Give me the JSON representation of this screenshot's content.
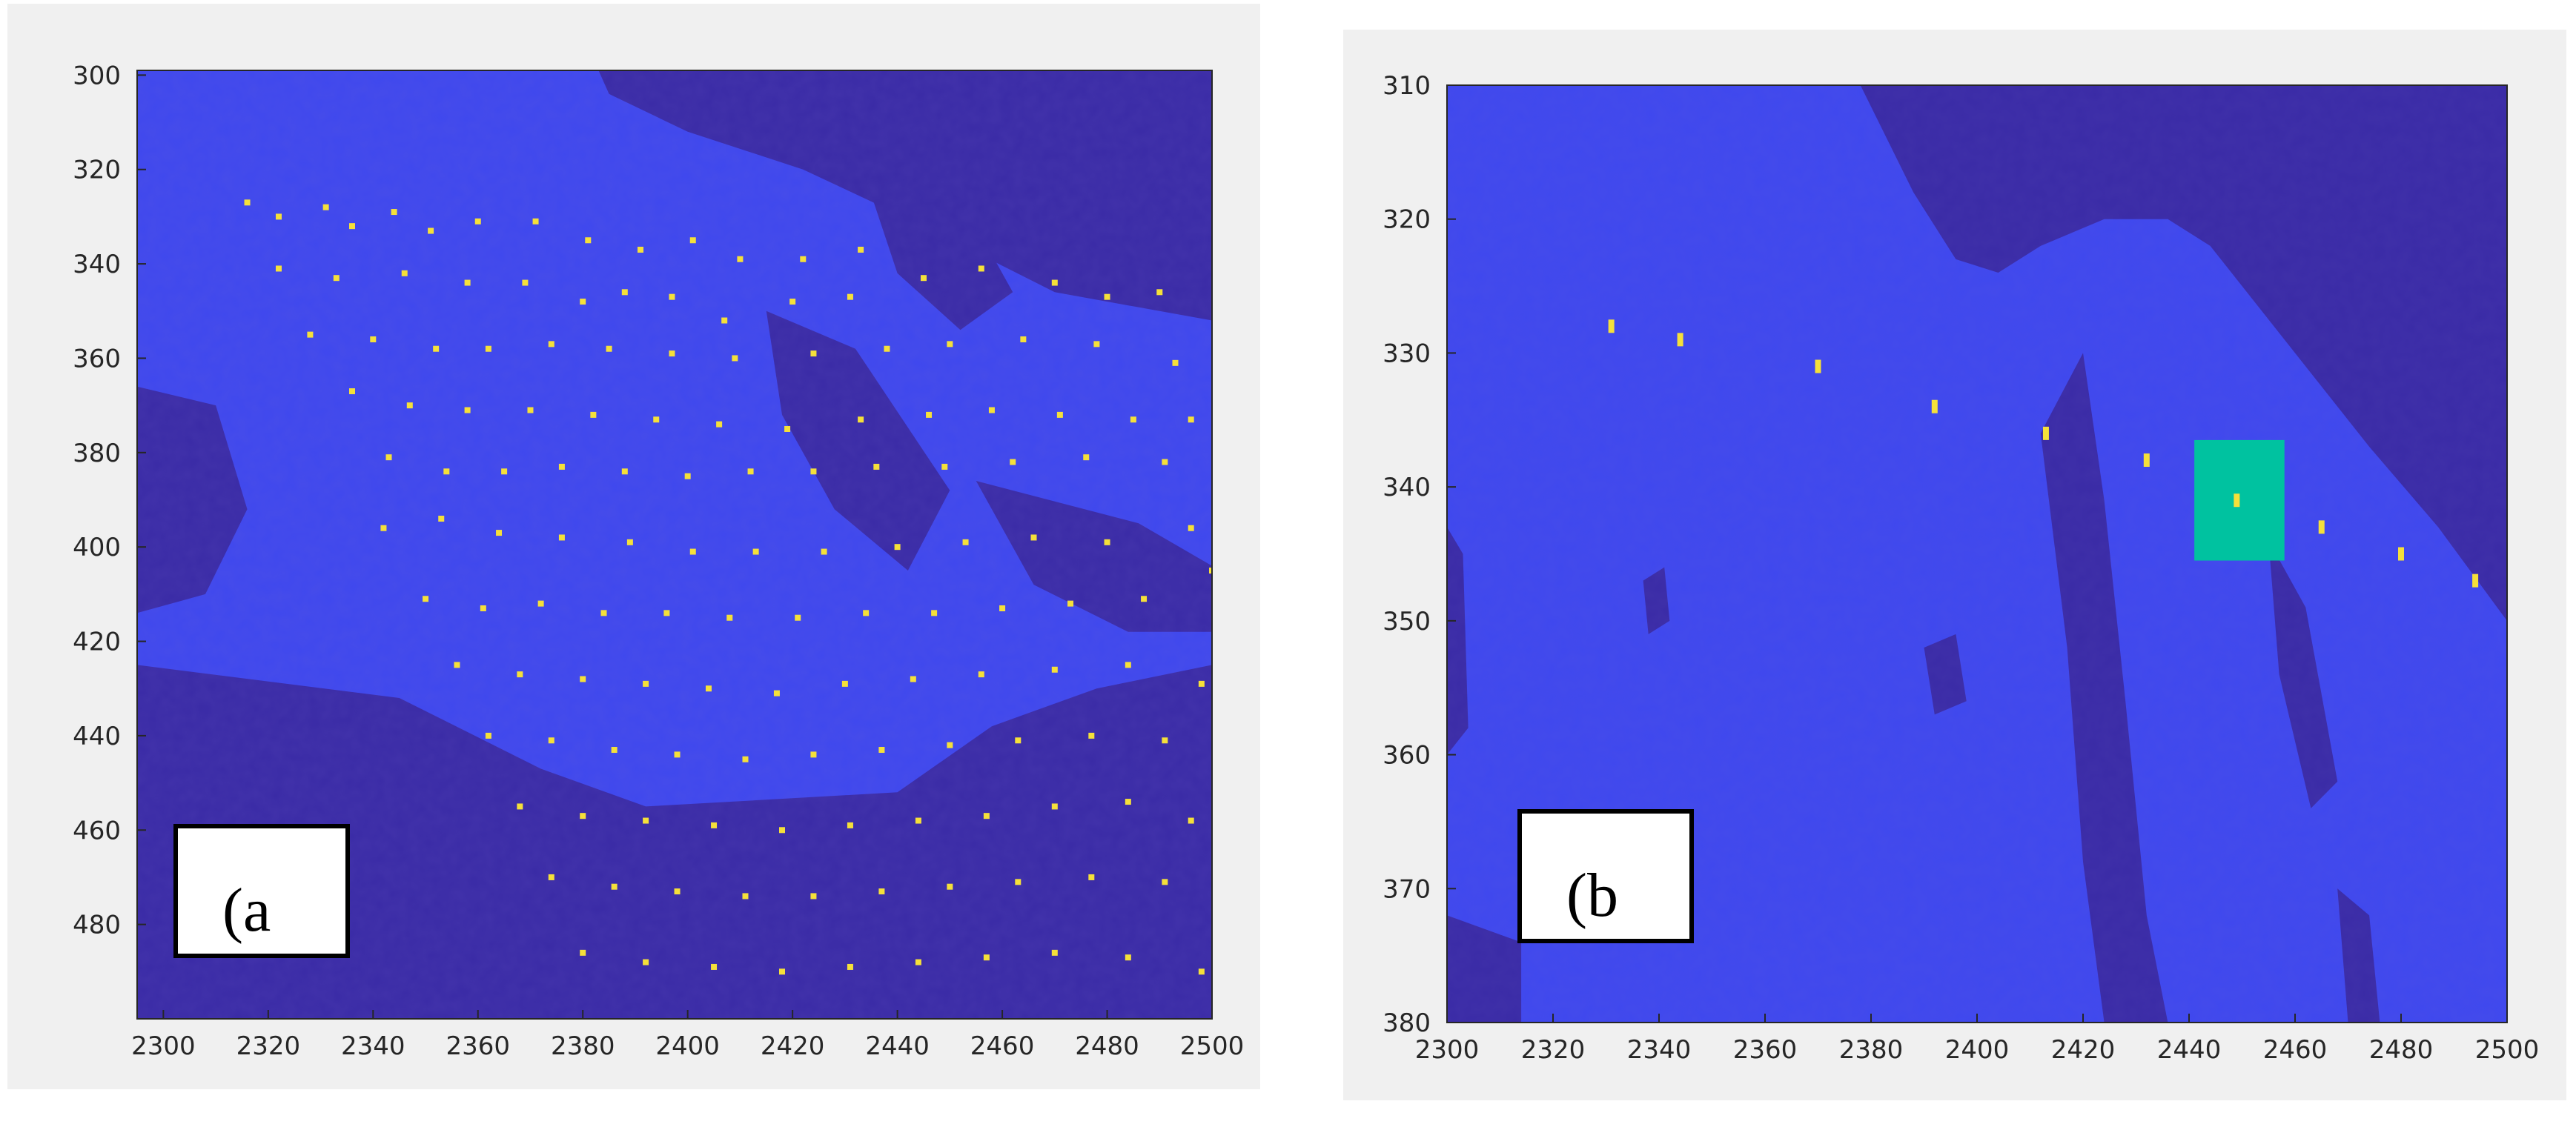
{
  "colors": {
    "panel_bg": "#f0f0f0",
    "light_region": "#3f48ee",
    "dark_region": "#3a2ba6",
    "marker": "#f5e03a",
    "highlight": "#00c2a0",
    "label_box": "#ffffff"
  },
  "chart_data": [
    {
      "type": "heatmap",
      "panel_label": "(a",
      "xlim": [
        2295,
        2500
      ],
      "ylim": [
        299,
        500
      ],
      "y_reversed": true,
      "xticks": [
        "2300",
        "2320",
        "2340",
        "2360",
        "2380",
        "2400",
        "2420",
        "2440",
        "2460",
        "2480",
        "2500"
      ],
      "yticks": [
        "300",
        "320",
        "340",
        "360",
        "380",
        "400",
        "420",
        "440",
        "460",
        "480"
      ],
      "xtick_values": [
        2300,
        2320,
        2340,
        2360,
        2380,
        2400,
        2420,
        2440,
        2460,
        2480,
        2500
      ],
      "ytick_values": [
        300,
        320,
        340,
        360,
        380,
        400,
        420,
        440,
        460,
        480
      ],
      "categories": [
        "light",
        "dark",
        "marker"
      ],
      "dark_regions": [
        [
          [
            2383,
            299
          ],
          [
            2500,
            299
          ],
          [
            2500,
            352
          ],
          [
            2470,
            346
          ],
          [
            2445,
            332
          ],
          [
            2422,
            320
          ],
          [
            2400,
            312
          ],
          [
            2385,
            304
          ]
        ],
        [
          [
            2295,
            366
          ],
          [
            2310,
            370
          ],
          [
            2316,
            392
          ],
          [
            2308,
            410
          ],
          [
            2295,
            414
          ]
        ],
        [
          [
            2295,
            425
          ],
          [
            2345,
            432
          ],
          [
            2372,
            447
          ],
          [
            2392,
            455
          ],
          [
            2440,
            452
          ],
          [
            2458,
            438
          ],
          [
            2478,
            430
          ],
          [
            2500,
            425
          ],
          [
            2500,
            500
          ],
          [
            2295,
            500
          ]
        ],
        [
          [
            2415,
            350
          ],
          [
            2432,
            358
          ],
          [
            2450,
            388
          ],
          [
            2442,
            405
          ],
          [
            2428,
            392
          ],
          [
            2418,
            372
          ]
        ],
        [
          [
            2455,
            386
          ],
          [
            2486,
            395
          ],
          [
            2500,
            404
          ],
          [
            2500,
            418
          ],
          [
            2484,
            418
          ],
          [
            2466,
            408
          ]
        ],
        [
          [
            2434,
            322
          ],
          [
            2452,
            326
          ],
          [
            2462,
            346
          ],
          [
            2452,
            354
          ],
          [
            2440,
            342
          ]
        ]
      ],
      "markers": [
        [
          2316,
          327
        ],
        [
          2322,
          330
        ],
        [
          2331,
          328
        ],
        [
          2336,
          332
        ],
        [
          2344,
          329
        ],
        [
          2351,
          333
        ],
        [
          2360,
          331
        ],
        [
          2371,
          331
        ],
        [
          2381,
          335
        ],
        [
          2391,
          337
        ],
        [
          2401,
          335
        ],
        [
          2410,
          339
        ],
        [
          2422,
          339
        ],
        [
          2433,
          337
        ],
        [
          2322,
          341
        ],
        [
          2333,
          343
        ],
        [
          2346,
          342
        ],
        [
          2358,
          344
        ],
        [
          2369,
          344
        ],
        [
          2380,
          348
        ],
        [
          2388,
          346
        ],
        [
          2397,
          347
        ],
        [
          2407,
          352
        ],
        [
          2420,
          348
        ],
        [
          2431,
          347
        ],
        [
          2445,
          343
        ],
        [
          2456,
          341
        ],
        [
          2470,
          344
        ],
        [
          2480,
          347
        ],
        [
          2490,
          346
        ],
        [
          2328,
          355
        ],
        [
          2340,
          356
        ],
        [
          2352,
          358
        ],
        [
          2362,
          358
        ],
        [
          2374,
          357
        ],
        [
          2385,
          358
        ],
        [
          2397,
          359
        ],
        [
          2409,
          360
        ],
        [
          2424,
          359
        ],
        [
          2438,
          358
        ],
        [
          2450,
          357
        ],
        [
          2464,
          356
        ],
        [
          2478,
          357
        ],
        [
          2493,
          361
        ],
        [
          2336,
          367
        ],
        [
          2347,
          370
        ],
        [
          2358,
          371
        ],
        [
          2370,
          371
        ],
        [
          2382,
          372
        ],
        [
          2394,
          373
        ],
        [
          2406,
          374
        ],
        [
          2419,
          375
        ],
        [
          2433,
          373
        ],
        [
          2446,
          372
        ],
        [
          2458,
          371
        ],
        [
          2471,
          372
        ],
        [
          2485,
          373
        ],
        [
          2496,
          373
        ],
        [
          2343,
          381
        ],
        [
          2354,
          384
        ],
        [
          2365,
          384
        ],
        [
          2376,
          383
        ],
        [
          2388,
          384
        ],
        [
          2400,
          385
        ],
        [
          2412,
          384
        ],
        [
          2424,
          384
        ],
        [
          2436,
          383
        ],
        [
          2449,
          383
        ],
        [
          2462,
          382
        ],
        [
          2476,
          381
        ],
        [
          2491,
          382
        ],
        [
          2342,
          396
        ],
        [
          2353,
          394
        ],
        [
          2364,
          397
        ],
        [
          2376,
          398
        ],
        [
          2389,
          399
        ],
        [
          2401,
          401
        ],
        [
          2413,
          401
        ],
        [
          2426,
          401
        ],
        [
          2440,
          400
        ],
        [
          2453,
          399
        ],
        [
          2466,
          398
        ],
        [
          2480,
          399
        ],
        [
          2496,
          396
        ],
        [
          2350,
          411
        ],
        [
          2361,
          413
        ],
        [
          2372,
          412
        ],
        [
          2384,
          414
        ],
        [
          2396,
          414
        ],
        [
          2408,
          415
        ],
        [
          2421,
          415
        ],
        [
          2434,
          414
        ],
        [
          2447,
          414
        ],
        [
          2460,
          413
        ],
        [
          2473,
          412
        ],
        [
          2487,
          411
        ],
        [
          2500,
          405
        ],
        [
          2356,
          425
        ],
        [
          2368,
          427
        ],
        [
          2380,
          428
        ],
        [
          2392,
          429
        ],
        [
          2404,
          430
        ],
        [
          2417,
          431
        ],
        [
          2430,
          429
        ],
        [
          2443,
          428
        ],
        [
          2456,
          427
        ],
        [
          2470,
          426
        ],
        [
          2484,
          425
        ],
        [
          2498,
          429
        ],
        [
          2362,
          440
        ],
        [
          2374,
          441
        ],
        [
          2386,
          443
        ],
        [
          2398,
          444
        ],
        [
          2411,
          445
        ],
        [
          2424,
          444
        ],
        [
          2437,
          443
        ],
        [
          2450,
          442
        ],
        [
          2463,
          441
        ],
        [
          2477,
          440
        ],
        [
          2491,
          441
        ],
        [
          2368,
          455
        ],
        [
          2380,
          457
        ],
        [
          2392,
          458
        ],
        [
          2405,
          459
        ],
        [
          2418,
          460
        ],
        [
          2431,
          459
        ],
        [
          2444,
          458
        ],
        [
          2457,
          457
        ],
        [
          2470,
          455
        ],
        [
          2484,
          454
        ],
        [
          2496,
          458
        ],
        [
          2374,
          470
        ],
        [
          2386,
          472
        ],
        [
          2398,
          473
        ],
        [
          2411,
          474
        ],
        [
          2424,
          474
        ],
        [
          2437,
          473
        ],
        [
          2450,
          472
        ],
        [
          2463,
          471
        ],
        [
          2477,
          470
        ],
        [
          2491,
          471
        ],
        [
          2380,
          486
        ],
        [
          2392,
          488
        ],
        [
          2405,
          489
        ],
        [
          2418,
          490
        ],
        [
          2431,
          489
        ],
        [
          2444,
          488
        ],
        [
          2457,
          487
        ],
        [
          2470,
          486
        ],
        [
          2484,
          487
        ],
        [
          2498,
          490
        ]
      ]
    },
    {
      "type": "heatmap",
      "panel_label": "(b",
      "xlim": [
        2300,
        2500
      ],
      "ylim": [
        310,
        380
      ],
      "y_reversed": true,
      "xticks": [
        "2300",
        "2320",
        "2340",
        "2360",
        "2380",
        "2400",
        "2420",
        "2440",
        "2460",
        "2480",
        "2500"
      ],
      "yticks": [
        "310",
        "320",
        "330",
        "340",
        "350",
        "360",
        "370",
        "380"
      ],
      "xtick_values": [
        2300,
        2320,
        2340,
        2360,
        2380,
        2400,
        2420,
        2440,
        2460,
        2480,
        2500
      ],
      "ytick_values": [
        310,
        320,
        330,
        340,
        350,
        360,
        370,
        380
      ],
      "categories": [
        "light",
        "dark",
        "marker",
        "highlight"
      ],
      "dark_regions": [
        [
          [
            2378,
            310
          ],
          [
            2500,
            310
          ],
          [
            2500,
            350
          ],
          [
            2487,
            343
          ],
          [
            2474,
            337
          ],
          [
            2462,
            331
          ],
          [
            2452,
            326
          ],
          [
            2444,
            322
          ],
          [
            2436,
            320
          ],
          [
            2424,
            320
          ],
          [
            2412,
            322
          ],
          [
            2404,
            324
          ],
          [
            2396,
            323
          ],
          [
            2388,
            318
          ]
        ],
        [
          [
            2412,
            336
          ],
          [
            2420,
            330
          ],
          [
            2424,
            341
          ],
          [
            2428,
            356
          ],
          [
            2432,
            372
          ],
          [
            2436,
            380
          ],
          [
            2424,
            380
          ],
          [
            2420,
            368
          ],
          [
            2417,
            352
          ]
        ],
        [
          [
            2476,
            314
          ],
          [
            2500,
            314
          ],
          [
            2500,
            330
          ],
          [
            2490,
            327
          ],
          [
            2480,
            322
          ]
        ],
        [
          [
            2300,
            372
          ],
          [
            2314,
            374
          ],
          [
            2314,
            380
          ],
          [
            2300,
            380
          ]
        ],
        [
          [
            2300,
            343
          ],
          [
            2303,
            345
          ],
          [
            2304,
            358
          ],
          [
            2300,
            360
          ]
        ],
        [
          [
            2455,
            344
          ],
          [
            2462,
            349
          ],
          [
            2468,
            362
          ],
          [
            2463,
            364
          ],
          [
            2457,
            354
          ]
        ],
        [
          [
            2390,
            352
          ],
          [
            2396,
            351
          ],
          [
            2398,
            356
          ],
          [
            2392,
            357
          ]
        ],
        [
          [
            2337,
            347
          ],
          [
            2341,
            346
          ],
          [
            2342,
            350
          ],
          [
            2338,
            351
          ]
        ],
        [
          [
            2468,
            370
          ],
          [
            2474,
            372
          ],
          [
            2476,
            380
          ],
          [
            2470,
            380
          ]
        ]
      ],
      "highlight_box": [
        2441,
        336.5,
        2458,
        345.5
      ],
      "markers": [
        [
          2331,
          328
        ],
        [
          2344,
          329
        ],
        [
          2370,
          331
        ],
        [
          2392,
          334
        ],
        [
          2413,
          336
        ],
        [
          2432,
          338
        ],
        [
          2449,
          341
        ],
        [
          2465,
          343
        ],
        [
          2480,
          345
        ],
        [
          2494,
          347
        ]
      ]
    }
  ]
}
